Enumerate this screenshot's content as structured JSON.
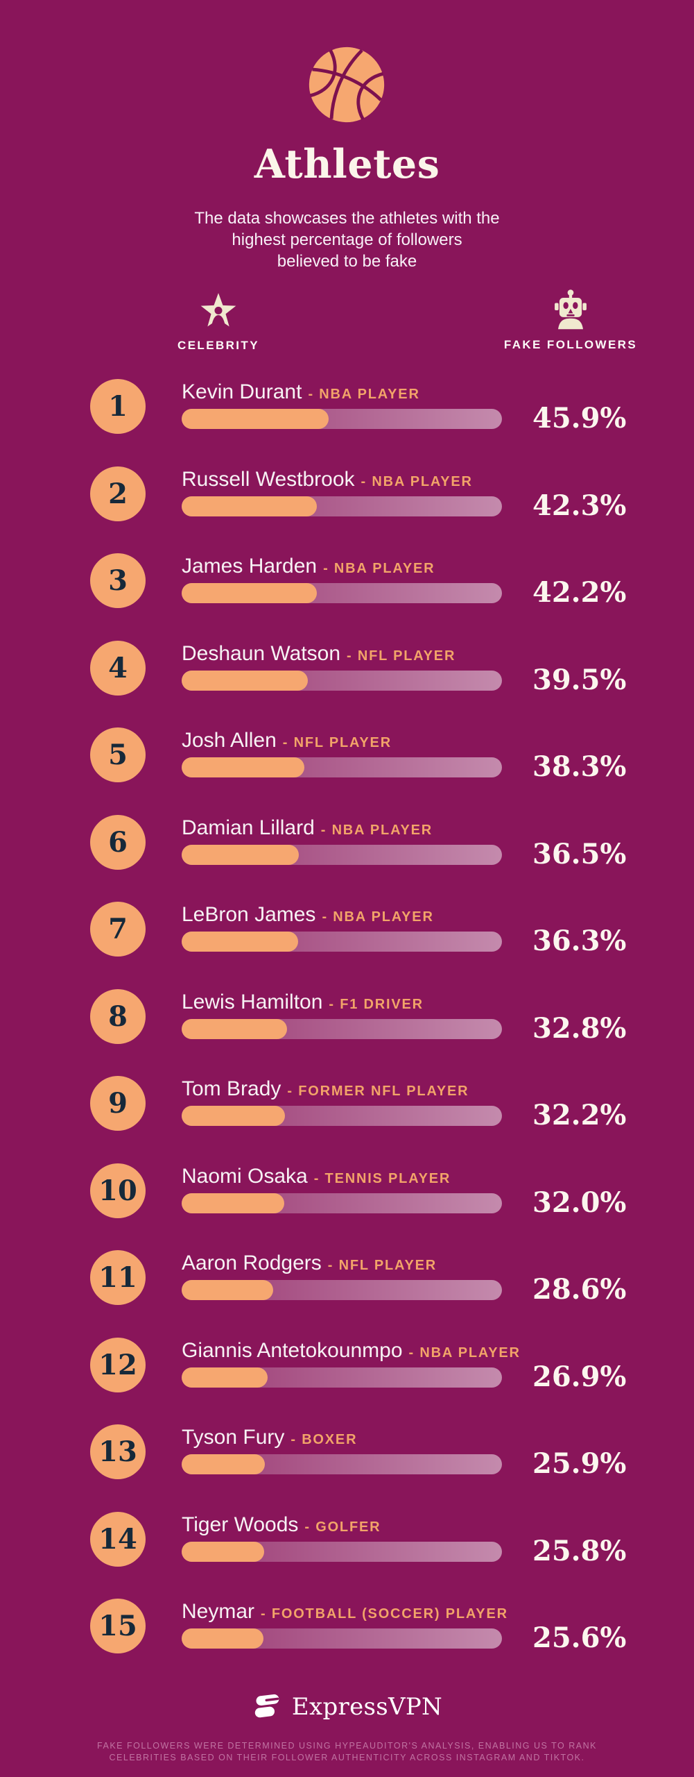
{
  "colors": {
    "background": "#89155a",
    "accent_orange": "#f6a770",
    "cream_icon": "#f0e9cf",
    "rank_number": "#16293a",
    "seam_dark": "#7c114f",
    "track_light_end": "#bd93ab"
  },
  "header": {
    "title": "Athletes",
    "subtitle_lines": [
      "The data showcases the athletes with the",
      "highest percentage of followers",
      "believed to be fake"
    ]
  },
  "columns": {
    "celebrity": "CELEBRITY",
    "fake_followers": "FAKE FOLLOWERS"
  },
  "row_separator": "-",
  "rows": [
    {
      "rank": "1",
      "name": "Kevin Durant",
      "role": "NBA PLAYER",
      "fake_followers": "45.9%"
    },
    {
      "rank": "2",
      "name": "Russell Westbrook",
      "role": "NBA PLAYER",
      "fake_followers": "42.3%"
    },
    {
      "rank": "3",
      "name": "James Harden",
      "role": "NBA PLAYER",
      "fake_followers": "42.2%"
    },
    {
      "rank": "4",
      "name": "Deshaun Watson",
      "role": "NFL PLAYER",
      "fake_followers": "39.5%"
    },
    {
      "rank": "5",
      "name": "Josh Allen",
      "role": "NFL PLAYER",
      "fake_followers": "38.3%"
    },
    {
      "rank": "6",
      "name": "Damian Lillard",
      "role": "NBA PLAYER",
      "fake_followers": "36.5%"
    },
    {
      "rank": "7",
      "name": "LeBron James",
      "role": "NBA PLAYER",
      "fake_followers": "36.3%"
    },
    {
      "rank": "8",
      "name": "Lewis Hamilton",
      "role": "F1 DRIVER",
      "fake_followers": "32.8%"
    },
    {
      "rank": "9",
      "name": "Tom Brady",
      "role": "FORMER NFL PLAYER",
      "fake_followers": "32.2%"
    },
    {
      "rank": "10",
      "name": "Naomi Osaka",
      "role": "TENNIS PLAYER",
      "fake_followers": "32.0%"
    },
    {
      "rank": "11",
      "name": "Aaron Rodgers",
      "role": "NFL PLAYER",
      "fake_followers": "28.6%"
    },
    {
      "rank": "12",
      "name": "Giannis Antetokounmpo",
      "role": "NBA PLAYER",
      "fake_followers": "26.9%"
    },
    {
      "rank": "13",
      "name": "Tyson Fury",
      "role": "BOXER",
      "fake_followers": "25.9%"
    },
    {
      "rank": "14",
      "name": "Tiger Woods",
      "role": "GOLFER",
      "fake_followers": "25.8%"
    },
    {
      "rank": "15",
      "name": "Neymar",
      "role": "FOOTBALL (SOCCER) PLAYER",
      "fake_followers": "25.6%"
    }
  ],
  "footer": {
    "brand": "ExpressVPN",
    "disclaimer_lines": [
      "FAKE FOLLOWERS WERE DETERMINED USING HYPEAUDITOR'S ANALYSIS, ENABLING US TO RANK",
      "CELEBRITIES BASED ON THEIR FOLLOWER AUTHENTICITY ACROSS INSTAGRAM AND TIKTOK."
    ]
  },
  "chart_data": {
    "type": "bar",
    "orientation": "horizontal",
    "title": "Athletes",
    "subtitle": "The data showcases the athletes with the highest percentage of followers believed to be fake",
    "categories": [
      "Kevin Durant",
      "Russell Westbrook",
      "James Harden",
      "Deshaun Watson",
      "Josh Allen",
      "Damian Lillard",
      "LeBron James",
      "Lewis Hamilton",
      "Tom Brady",
      "Naomi Osaka",
      "Aaron Rodgers",
      "Giannis Antetokounmpo",
      "Tyson Fury",
      "Tiger Woods",
      "Neymar"
    ],
    "category_roles": [
      "NBA Player",
      "NBA Player",
      "NBA Player",
      "NFL Player",
      "NFL Player",
      "NBA Player",
      "NBA Player",
      "F1 Driver",
      "Former NFL Player",
      "Tennis Player",
      "NFL Player",
      "NBA Player",
      "Boxer",
      "Golfer",
      "Football (Soccer) Player"
    ],
    "series": [
      {
        "name": "Fake Followers",
        "values": [
          45.9,
          42.3,
          42.2,
          39.5,
          38.3,
          36.5,
          36.3,
          32.8,
          32.2,
          32.0,
          28.6,
          26.9,
          25.9,
          25.8,
          25.6
        ]
      }
    ],
    "value_suffix": "%",
    "xlabel": "Fake Followers (%)",
    "ylabel": "Celebrity",
    "xlim": [
      0,
      100
    ],
    "grid": false,
    "legend": false
  }
}
